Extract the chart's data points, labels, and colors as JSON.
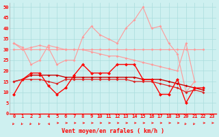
{
  "xlabel": "Vent moyen/en rafales ( km/h )",
  "x": [
    0,
    1,
    2,
    3,
    4,
    5,
    6,
    7,
    8,
    9,
    10,
    11,
    12,
    13,
    14,
    15,
    16,
    17,
    18,
    19,
    20,
    21,
    22,
    23
  ],
  "line_jagged_red": [
    9,
    16,
    19,
    19,
    13,
    9,
    12,
    18,
    23,
    19,
    19,
    19,
    23,
    23,
    23,
    16,
    16,
    9,
    9,
    16,
    5,
    12,
    12,
    null
  ],
  "line_flat_dark": [
    15,
    16,
    18,
    18,
    18,
    18,
    17,
    17,
    17,
    17,
    17,
    17,
    17,
    17,
    17,
    16,
    16,
    16,
    15,
    14,
    13,
    12,
    11,
    null
  ],
  "line_decline_red": [
    15,
    16,
    16,
    16,
    15,
    14,
    16,
    16,
    16,
    16,
    16,
    16,
    16,
    16,
    15,
    15,
    15,
    14,
    13,
    12,
    10,
    11,
    10,
    null
  ],
  "line_upper_pink": [
    33,
    30,
    31,
    32,
    31,
    23,
    25,
    25,
    36,
    41,
    37,
    35,
    33,
    40,
    44,
    50,
    40,
    41,
    33,
    28,
    10,
    15,
    null,
    null
  ],
  "line_flat_pink": [
    30,
    30,
    30,
    30,
    30,
    30,
    30,
    30,
    30,
    30,
    30,
    30,
    30,
    30,
    30,
    30,
    30,
    30,
    30,
    30,
    30,
    30,
    30,
    null
  ],
  "line_decline_pink": [
    33,
    31,
    23,
    25,
    32,
    31,
    30,
    30,
    30,
    29,
    28,
    27,
    27,
    26,
    25,
    24,
    23,
    22,
    21,
    20,
    33,
    15,
    null,
    null
  ],
  "bg_color": "#cef0f0",
  "grid_color": "#aadddd",
  "color_bright_red": "#ff0000",
  "color_dark_red": "#cc0000",
  "color_med_red": "#dd2222",
  "color_light_pink": "#ff9999",
  "color_med_pink": "#ee7777",
  "ylim": [
    0,
    52
  ],
  "yticks": [
    0,
    5,
    10,
    15,
    20,
    25,
    30,
    35,
    40,
    45,
    50
  ],
  "xticks": [
    0,
    1,
    2,
    3,
    4,
    5,
    6,
    7,
    8,
    9,
    10,
    11,
    12,
    13,
    14,
    15,
    16,
    17,
    18,
    19,
    20,
    21,
    22,
    23
  ],
  "tick_fontsize": 5,
  "label_fontsize": 6,
  "arrow_directions": [
    4,
    4,
    4,
    4,
    3,
    2,
    2,
    2,
    2,
    2,
    2,
    2,
    2,
    2,
    2,
    2,
    2,
    2,
    2,
    2,
    4,
    4,
    2,
    2
  ]
}
